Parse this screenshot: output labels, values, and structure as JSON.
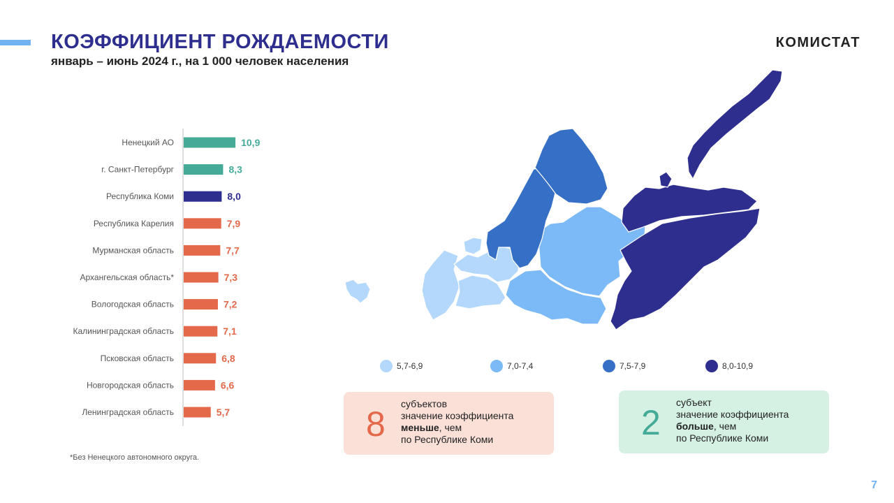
{
  "header": {
    "title": "КОЭФФИЦИЕНТ РОЖДАЕМОСТИ",
    "subtitle": "январь – июнь 2024 г., на 1 000 человек населения",
    "brand": "КОМИСТАТ"
  },
  "colors": {
    "title": "#2e2e8f",
    "accent_bar": "#6fb3f2",
    "teal": "#46aa98",
    "navy": "#2e2e8f",
    "orange": "#e4694b",
    "page_number": "#6fb3f2",
    "card_left_bg": "#fbe0d8",
    "card_right_bg": "#d5f1e4",
    "card_left_num": "#e4694b",
    "card_right_num": "#46aa98"
  },
  "chart_data": {
    "type": "bar",
    "orientation": "horizontal",
    "categories": [
      "Ненецкий АО",
      "г. Санкт-Петербург",
      "Республика Коми",
      "Республика Карелия",
      "Мурманская область",
      "Архангельская область*",
      "Вологодская область",
      "Калининградская область",
      "Псковская область",
      "Новгородская область",
      "Ленинградская область"
    ],
    "values": [
      10.9,
      8.3,
      8.0,
      7.9,
      7.7,
      7.3,
      7.2,
      7.1,
      6.8,
      6.6,
      5.7
    ],
    "value_labels": [
      "10,9",
      "8,3",
      "8,0",
      "7,9",
      "7,7",
      "7,3",
      "7,2",
      "7,1",
      "6,8",
      "6,6",
      "5,7"
    ],
    "bar_colors": [
      "#46aa98",
      "#46aa98",
      "#2e2e8f",
      "#e4694b",
      "#e4694b",
      "#e4694b",
      "#e4694b",
      "#e4694b",
      "#e4694b",
      "#e4694b",
      "#e4694b"
    ],
    "axis_line": true,
    "grid": false
  },
  "footnote": "*Без Ненецкого автономного округа.",
  "map": {
    "legend": [
      {
        "label": "5,7-6,9",
        "color": "#b3d8fb"
      },
      {
        "label": "7,0-7,4",
        "color": "#7cbaf7"
      },
      {
        "label": "7,5-7,9",
        "color": "#3670c6"
      },
      {
        "label": "8,0-10,9",
        "color": "#2e2e8f"
      }
    ]
  },
  "cards": {
    "left": {
      "number": "8",
      "line1": "субъектов",
      "line2": "значение коэффициента",
      "line3_bold": "меньше",
      "line3_rest": ", чем",
      "line4": "по Республике Коми"
    },
    "right": {
      "number": "2",
      "line1": "субъект",
      "line2": "значение коэффициента",
      "line3_bold": "больше",
      "line3_rest": ", чем",
      "line4": "по Республике Коми"
    }
  },
  "page_number": "7"
}
